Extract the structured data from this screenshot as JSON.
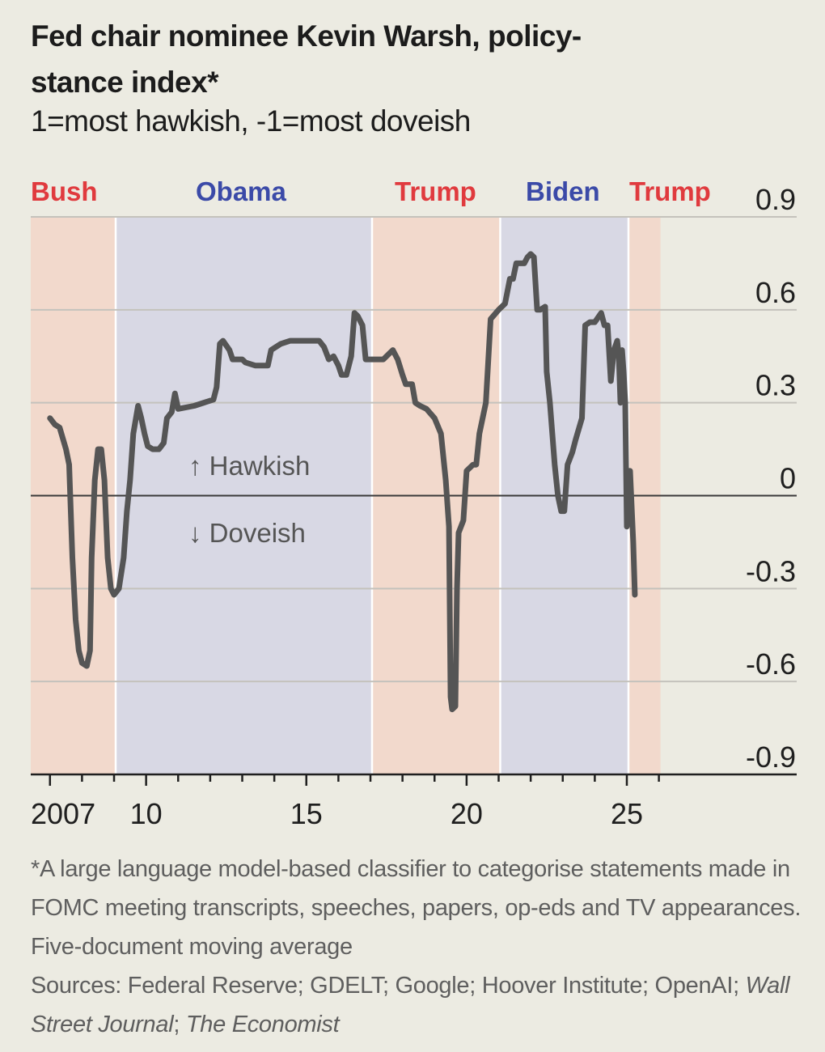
{
  "header": {
    "title": "Fed chair nominee Kevin Warsh, policy-stance index*",
    "subtitle": "1=most hawkish, -1=most doveish"
  },
  "chart_data": {
    "type": "line",
    "title": "Fed chair nominee Kevin Warsh, policy-stance index*",
    "subtitle": "1=most hawkish, -1=most doveish",
    "ylim": [
      -0.9,
      0.9
    ],
    "xlim": [
      2006.4,
      2030.3
    ],
    "yticks": [
      0.9,
      0.6,
      0.3,
      0,
      -0.3,
      -0.6,
      -0.9
    ],
    "ytick_labels": [
      "0.9",
      "0.6",
      "0.3",
      "0",
      "-0.3",
      "-0.6",
      "-0.9"
    ],
    "xticks": [
      2007,
      2010,
      2015,
      2020,
      2025
    ],
    "xtick_labels": [
      "2007",
      "10",
      "15",
      "20",
      "25"
    ],
    "grid": true,
    "annotations": {
      "up": "↑ Hawkish",
      "down": "↓ Doveish"
    },
    "administrations": [
      {
        "label": "Bush",
        "start": 2006.4,
        "end": 2009.05,
        "color": "#e03a3e",
        "fill": "#f2d9cc"
      },
      {
        "label": "Obama",
        "start": 2009.05,
        "end": 2017.05,
        "color": "#3b4aa8",
        "fill": "#d8d8e4"
      },
      {
        "label": "Trump",
        "start": 2017.05,
        "end": 2021.05,
        "color": "#e03a3e",
        "fill": "#f2d9cc"
      },
      {
        "label": "Biden",
        "start": 2021.05,
        "end": 2025.05,
        "color": "#3b4aa8",
        "fill": "#d8d8e4"
      },
      {
        "label": "Trump",
        "start": 2025.05,
        "end": 2026.05,
        "color": "#e03a3e",
        "fill": "#f2d9cc"
      }
    ],
    "series": [
      {
        "color": "#555555",
        "points": [
          [
            2007.0,
            0.25
          ],
          [
            2007.15,
            0.23
          ],
          [
            2007.3,
            0.22
          ],
          [
            2007.5,
            0.15
          ],
          [
            2007.6,
            0.1
          ],
          [
            2007.7,
            -0.2
          ],
          [
            2007.8,
            -0.4
          ],
          [
            2007.9,
            -0.5
          ],
          [
            2008.0,
            -0.54
          ],
          [
            2008.15,
            -0.55
          ],
          [
            2008.25,
            -0.5
          ],
          [
            2008.3,
            -0.2
          ],
          [
            2008.4,
            0.05
          ],
          [
            2008.5,
            0.15
          ],
          [
            2008.6,
            0.15
          ],
          [
            2008.7,
            0.05
          ],
          [
            2008.8,
            -0.2
          ],
          [
            2008.9,
            -0.3
          ],
          [
            2009.0,
            -0.32
          ],
          [
            2009.15,
            -0.3
          ],
          [
            2009.3,
            -0.2
          ],
          [
            2009.4,
            -0.05
          ],
          [
            2009.5,
            0.05
          ],
          [
            2009.6,
            0.2
          ],
          [
            2009.75,
            0.29
          ],
          [
            2009.85,
            0.25
          ],
          [
            2009.95,
            0.2
          ],
          [
            2010.05,
            0.16
          ],
          [
            2010.2,
            0.15
          ],
          [
            2010.4,
            0.15
          ],
          [
            2010.55,
            0.17
          ],
          [
            2010.65,
            0.25
          ],
          [
            2010.8,
            0.27
          ],
          [
            2010.9,
            0.33
          ],
          [
            2011.0,
            0.28
          ],
          [
            2011.5,
            0.29
          ],
          [
            2012.1,
            0.31
          ],
          [
            2012.2,
            0.35
          ],
          [
            2012.3,
            0.49
          ],
          [
            2012.4,
            0.5
          ],
          [
            2012.6,
            0.47
          ],
          [
            2012.7,
            0.44
          ],
          [
            2013.0,
            0.44
          ],
          [
            2013.1,
            0.43
          ],
          [
            2013.4,
            0.42
          ],
          [
            2013.8,
            0.42
          ],
          [
            2013.9,
            0.47
          ],
          [
            2014.2,
            0.49
          ],
          [
            2014.5,
            0.5
          ],
          [
            2015.0,
            0.5
          ],
          [
            2015.4,
            0.5
          ],
          [
            2015.55,
            0.48
          ],
          [
            2015.7,
            0.44
          ],
          [
            2015.85,
            0.45
          ],
          [
            2016.0,
            0.42
          ],
          [
            2016.1,
            0.39
          ],
          [
            2016.25,
            0.39
          ],
          [
            2016.4,
            0.45
          ],
          [
            2016.5,
            0.59
          ],
          [
            2016.6,
            0.58
          ],
          [
            2016.75,
            0.55
          ],
          [
            2016.85,
            0.44
          ],
          [
            2017.0,
            0.44
          ],
          [
            2017.4,
            0.44
          ],
          [
            2017.6,
            0.46
          ],
          [
            2017.7,
            0.47
          ],
          [
            2017.85,
            0.44
          ],
          [
            2018.0,
            0.39
          ],
          [
            2018.1,
            0.36
          ],
          [
            2018.3,
            0.36
          ],
          [
            2018.4,
            0.3
          ],
          [
            2018.55,
            0.29
          ],
          [
            2018.75,
            0.28
          ],
          [
            2019.0,
            0.25
          ],
          [
            2019.2,
            0.2
          ],
          [
            2019.35,
            0.05
          ],
          [
            2019.45,
            -0.1
          ],
          [
            2019.5,
            -0.65
          ],
          [
            2019.55,
            -0.69
          ],
          [
            2019.65,
            -0.68
          ],
          [
            2019.7,
            -0.3
          ],
          [
            2019.75,
            -0.12
          ],
          [
            2019.9,
            -0.08
          ],
          [
            2019.95,
            0.0
          ],
          [
            2020.0,
            0.08
          ],
          [
            2020.2,
            0.1
          ],
          [
            2020.3,
            0.1
          ],
          [
            2020.4,
            0.2
          ],
          [
            2020.6,
            0.3
          ],
          [
            2020.75,
            0.57
          ],
          [
            2021.0,
            0.6
          ],
          [
            2021.2,
            0.62
          ],
          [
            2021.35,
            0.7
          ],
          [
            2021.45,
            0.7
          ],
          [
            2021.55,
            0.75
          ],
          [
            2021.8,
            0.75
          ],
          [
            2021.9,
            0.77
          ],
          [
            2022.0,
            0.78
          ],
          [
            2022.1,
            0.77
          ],
          [
            2022.2,
            0.6
          ],
          [
            2022.3,
            0.6
          ],
          [
            2022.45,
            0.61
          ],
          [
            2022.5,
            0.4
          ],
          [
            2022.6,
            0.3
          ],
          [
            2022.75,
            0.1
          ],
          [
            2022.85,
            0.0
          ],
          [
            2022.95,
            -0.05
          ],
          [
            2023.05,
            -0.05
          ],
          [
            2023.15,
            0.1
          ],
          [
            2023.3,
            0.14
          ],
          [
            2023.4,
            0.18
          ],
          [
            2023.6,
            0.25
          ],
          [
            2023.7,
            0.55
          ],
          [
            2023.85,
            0.56
          ],
          [
            2024.0,
            0.56
          ],
          [
            2024.2,
            0.59
          ],
          [
            2024.3,
            0.55
          ],
          [
            2024.4,
            0.55
          ],
          [
            2024.5,
            0.37
          ],
          [
            2024.6,
            0.47
          ],
          [
            2024.7,
            0.5
          ],
          [
            2024.75,
            0.45
          ],
          [
            2024.8,
            0.3
          ],
          [
            2024.85,
            0.47
          ],
          [
            2024.9,
            0.4
          ],
          [
            2024.95,
            0.3
          ],
          [
            2025.0,
            -0.1
          ],
          [
            2025.05,
            0.08
          ],
          [
            2025.1,
            0.08
          ],
          [
            2025.2,
            -0.15
          ],
          [
            2025.25,
            -0.32
          ]
        ]
      }
    ]
  },
  "footnote": {
    "note": "*A large language model-based classifier to categorise statements made in FOMC meeting transcripts, speeches, papers, op-eds and TV appearances. Five-document moving average",
    "sources_prefix": "Sources: Federal Reserve; GDELT; Google; Hoover Institute; OpenAI; ",
    "source_wsj": "Wall Street Journal",
    "source_sep": "; ",
    "source_economist": "The Economist"
  }
}
